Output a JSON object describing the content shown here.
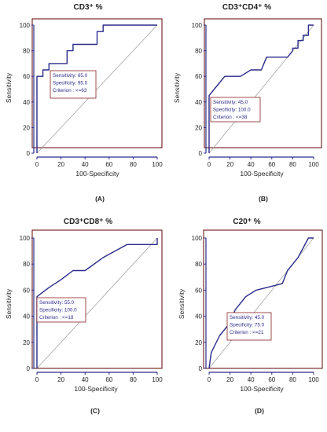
{
  "figure": {
    "colors": {
      "curve": "#2b2b8c",
      "frame": "#6b1a1a",
      "diagonal": "#9a9a9a",
      "box_border": "#8b2020",
      "text": "#1f1f1f",
      "box_text": "#2b2b8c"
    }
  },
  "chart_data": [
    {
      "type": "line",
      "title": "CD3⁺ %",
      "panel_label": "(A)",
      "xlabel": "100-Specificity",
      "ylabel": "Sensitivity",
      "xlim": [
        0,
        100
      ],
      "ylim": [
        0,
        100
      ],
      "xticks": [
        "0",
        "20",
        "40",
        "60",
        "80",
        "100"
      ],
      "yticks": [
        "0",
        "20",
        "40",
        "60",
        "80",
        "100"
      ],
      "series": [
        {
          "x": [
            0,
            0,
            5,
            5,
            10,
            10,
            25,
            25,
            30,
            30,
            50,
            50,
            55,
            55,
            100
          ],
          "y": [
            0,
            60,
            60,
            65,
            65,
            70,
            70,
            80,
            80,
            85,
            85,
            95,
            95,
            100,
            100
          ]
        }
      ],
      "reference_line": [
        [
          0,
          0
        ],
        [
          100,
          100
        ]
      ],
      "annotation": [
        "Sensitivity: 65.0",
        "Specificity: 95.0",
        "Criterion : <=63"
      ]
    },
    {
      "type": "line",
      "title": "CD3⁺CD4⁺ %",
      "panel_label": "(B)",
      "xlabel": "100-Specificity",
      "ylabel": "Sensitivity",
      "xlim": [
        0,
        100
      ],
      "ylim": [
        0,
        100
      ],
      "xticks": [
        "0",
        "20",
        "40",
        "60",
        "80",
        "100"
      ],
      "yticks": [
        "0",
        "20",
        "40",
        "60",
        "80",
        "100"
      ],
      "series": [
        {
          "x": [
            0,
            0,
            5,
            15,
            25,
            30,
            40,
            50,
            55,
            60,
            70,
            75,
            80,
            80,
            85,
            85,
            90,
            90,
            95,
            95,
            100
          ],
          "y": [
            0,
            45,
            50,
            60,
            60,
            60,
            65,
            65,
            75,
            75,
            75,
            75,
            80,
            82,
            82,
            88,
            88,
            92,
            92,
            100,
            100
          ]
        }
      ],
      "reference_line": [
        [
          0,
          0
        ],
        [
          100,
          100
        ]
      ],
      "annotation": [
        "Sensitivity: 45.0",
        "Specificity: 100.0",
        "Criterion : <=38"
      ]
    },
    {
      "type": "line",
      "title": "CD3⁺CD8⁺ %",
      "panel_label": "(C)",
      "xlabel": "100-Specificity",
      "ylabel": "Sensitivity",
      "xlim": [
        0,
        100
      ],
      "ylim": [
        0,
        100
      ],
      "xticks": [
        "0",
        "20",
        "40",
        "60",
        "80",
        "100"
      ],
      "yticks": [
        "0",
        "20",
        "40",
        "60",
        "80",
        "100"
      ],
      "series": [
        {
          "x": [
            0,
            0,
            10,
            20,
            30,
            40,
            55,
            75,
            100,
            100
          ],
          "y": [
            0,
            55,
            62,
            68,
            75,
            75,
            85,
            95,
            95,
            100
          ]
        }
      ],
      "reference_line": [
        [
          0,
          0
        ],
        [
          100,
          100
        ]
      ],
      "annotation": [
        "Sensitivity: 55.0",
        "Specificity: 100.0",
        "Criterion : <=18"
      ]
    },
    {
      "type": "line",
      "title": "C20⁺ %",
      "panel_label": "(D)",
      "xlabel": "100-Specificity",
      "ylabel": "Sensitivity",
      "xlim": [
        0,
        100
      ],
      "ylim": [
        0,
        100
      ],
      "xticks": [
        "0",
        "20",
        "40",
        "60",
        "80",
        "100"
      ],
      "yticks": [
        "0",
        "20",
        "40",
        "60",
        "80",
        "100"
      ],
      "series": [
        {
          "x": [
            0,
            2,
            10,
            20,
            25,
            35,
            45,
            60,
            70,
            75,
            85,
            95,
            100
          ],
          "y": [
            0,
            12,
            25,
            35,
            45,
            55,
            60,
            63,
            65,
            75,
            85,
            100,
            100
          ]
        }
      ],
      "reference_line": [
        [
          0,
          0
        ],
        [
          100,
          100
        ]
      ],
      "annotation": [
        "Sensitivity: 45.0",
        "Specificity: 75.0",
        "Criterion : <=21"
      ]
    }
  ]
}
